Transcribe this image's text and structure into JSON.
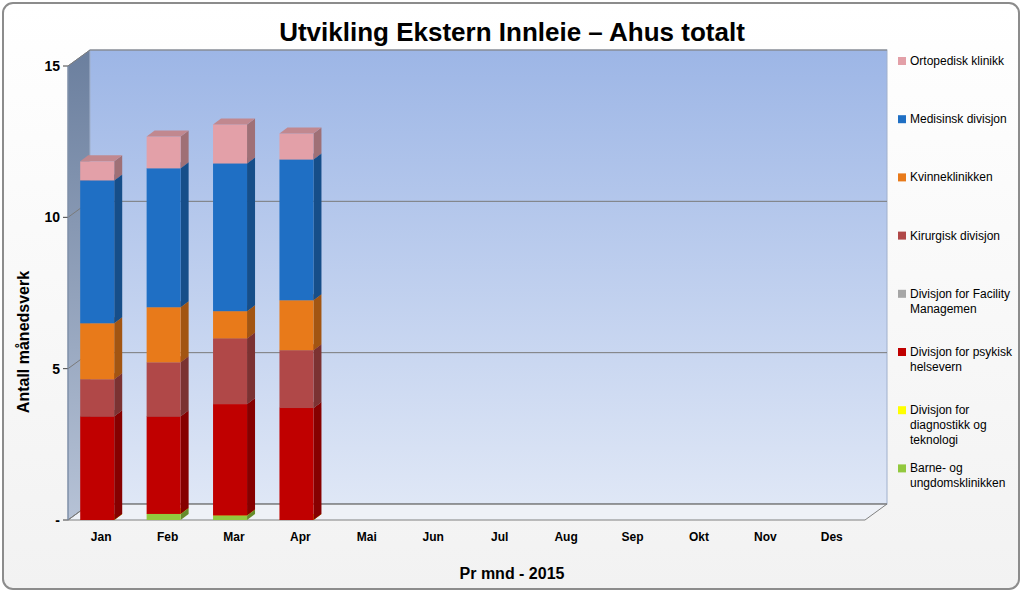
{
  "chart_data": {
    "type": "bar",
    "stacked": true,
    "title": "Utvikling Ekstern Innleie – Ahus totalt",
    "x_label": "Pr mnd - 2015",
    "y_label": "Antall månedsverk",
    "categories": [
      "Jan",
      "Feb",
      "Mar",
      "Apr",
      "Mai",
      "Jun",
      "Jul",
      "Aug",
      "Sep",
      "Okt",
      "Nov",
      "Des"
    ],
    "ylim": [
      0,
      15
    ],
    "yticks": [
      {
        "value": 0,
        "label": "-"
      },
      5,
      10,
      15
    ],
    "grid": true,
    "legend": "right",
    "series": [
      {
        "name": "Barne- og ungdomsklinikken",
        "color": "#92c83e",
        "values": [
          0,
          0.2,
          0.15,
          0,
          null,
          null,
          null,
          null,
          null,
          null,
          null,
          null
        ]
      },
      {
        "name": "Divisjon for diagnostikk og teknologi",
        "color": "#ffff00",
        "values": [
          0,
          0,
          0,
          0,
          null,
          null,
          null,
          null,
          null,
          null,
          null,
          null
        ]
      },
      {
        "name": "Divisjon for psykisk helsevern",
        "color": "#c00000",
        "values": [
          3.43,
          3.23,
          3.68,
          3.7,
          null,
          null,
          null,
          null,
          null,
          null,
          null,
          null
        ]
      },
      {
        "name": "Divisjon for Facility Managemen",
        "color": "#a6a6a6",
        "values": [
          0,
          0,
          0,
          0,
          null,
          null,
          null,
          null,
          null,
          null,
          null,
          null
        ]
      },
      {
        "name": "Kirurgisk divisjon",
        "color": "#b04848",
        "values": [
          1.22,
          1.78,
          2.17,
          1.91,
          null,
          null,
          null,
          null,
          null,
          null,
          null,
          null
        ]
      },
      {
        "name": "Kvinneklinikken",
        "color": "#e87a1a",
        "values": [
          1.85,
          1.82,
          0.9,
          1.65,
          null,
          null,
          null,
          null,
          null,
          null,
          null,
          null
        ]
      },
      {
        "name": "Medisinsk divisjon",
        "color": "#1f6fc4",
        "values": [
          4.72,
          4.59,
          4.88,
          4.65,
          null,
          null,
          null,
          null,
          null,
          null,
          null,
          null
        ]
      },
      {
        "name": "Ortopedisk klinikk",
        "color": "#e3a0a8",
        "values": [
          0.63,
          1.05,
          1.29,
          0.86,
          null,
          null,
          null,
          null,
          null,
          null,
          null,
          null
        ]
      }
    ]
  }
}
